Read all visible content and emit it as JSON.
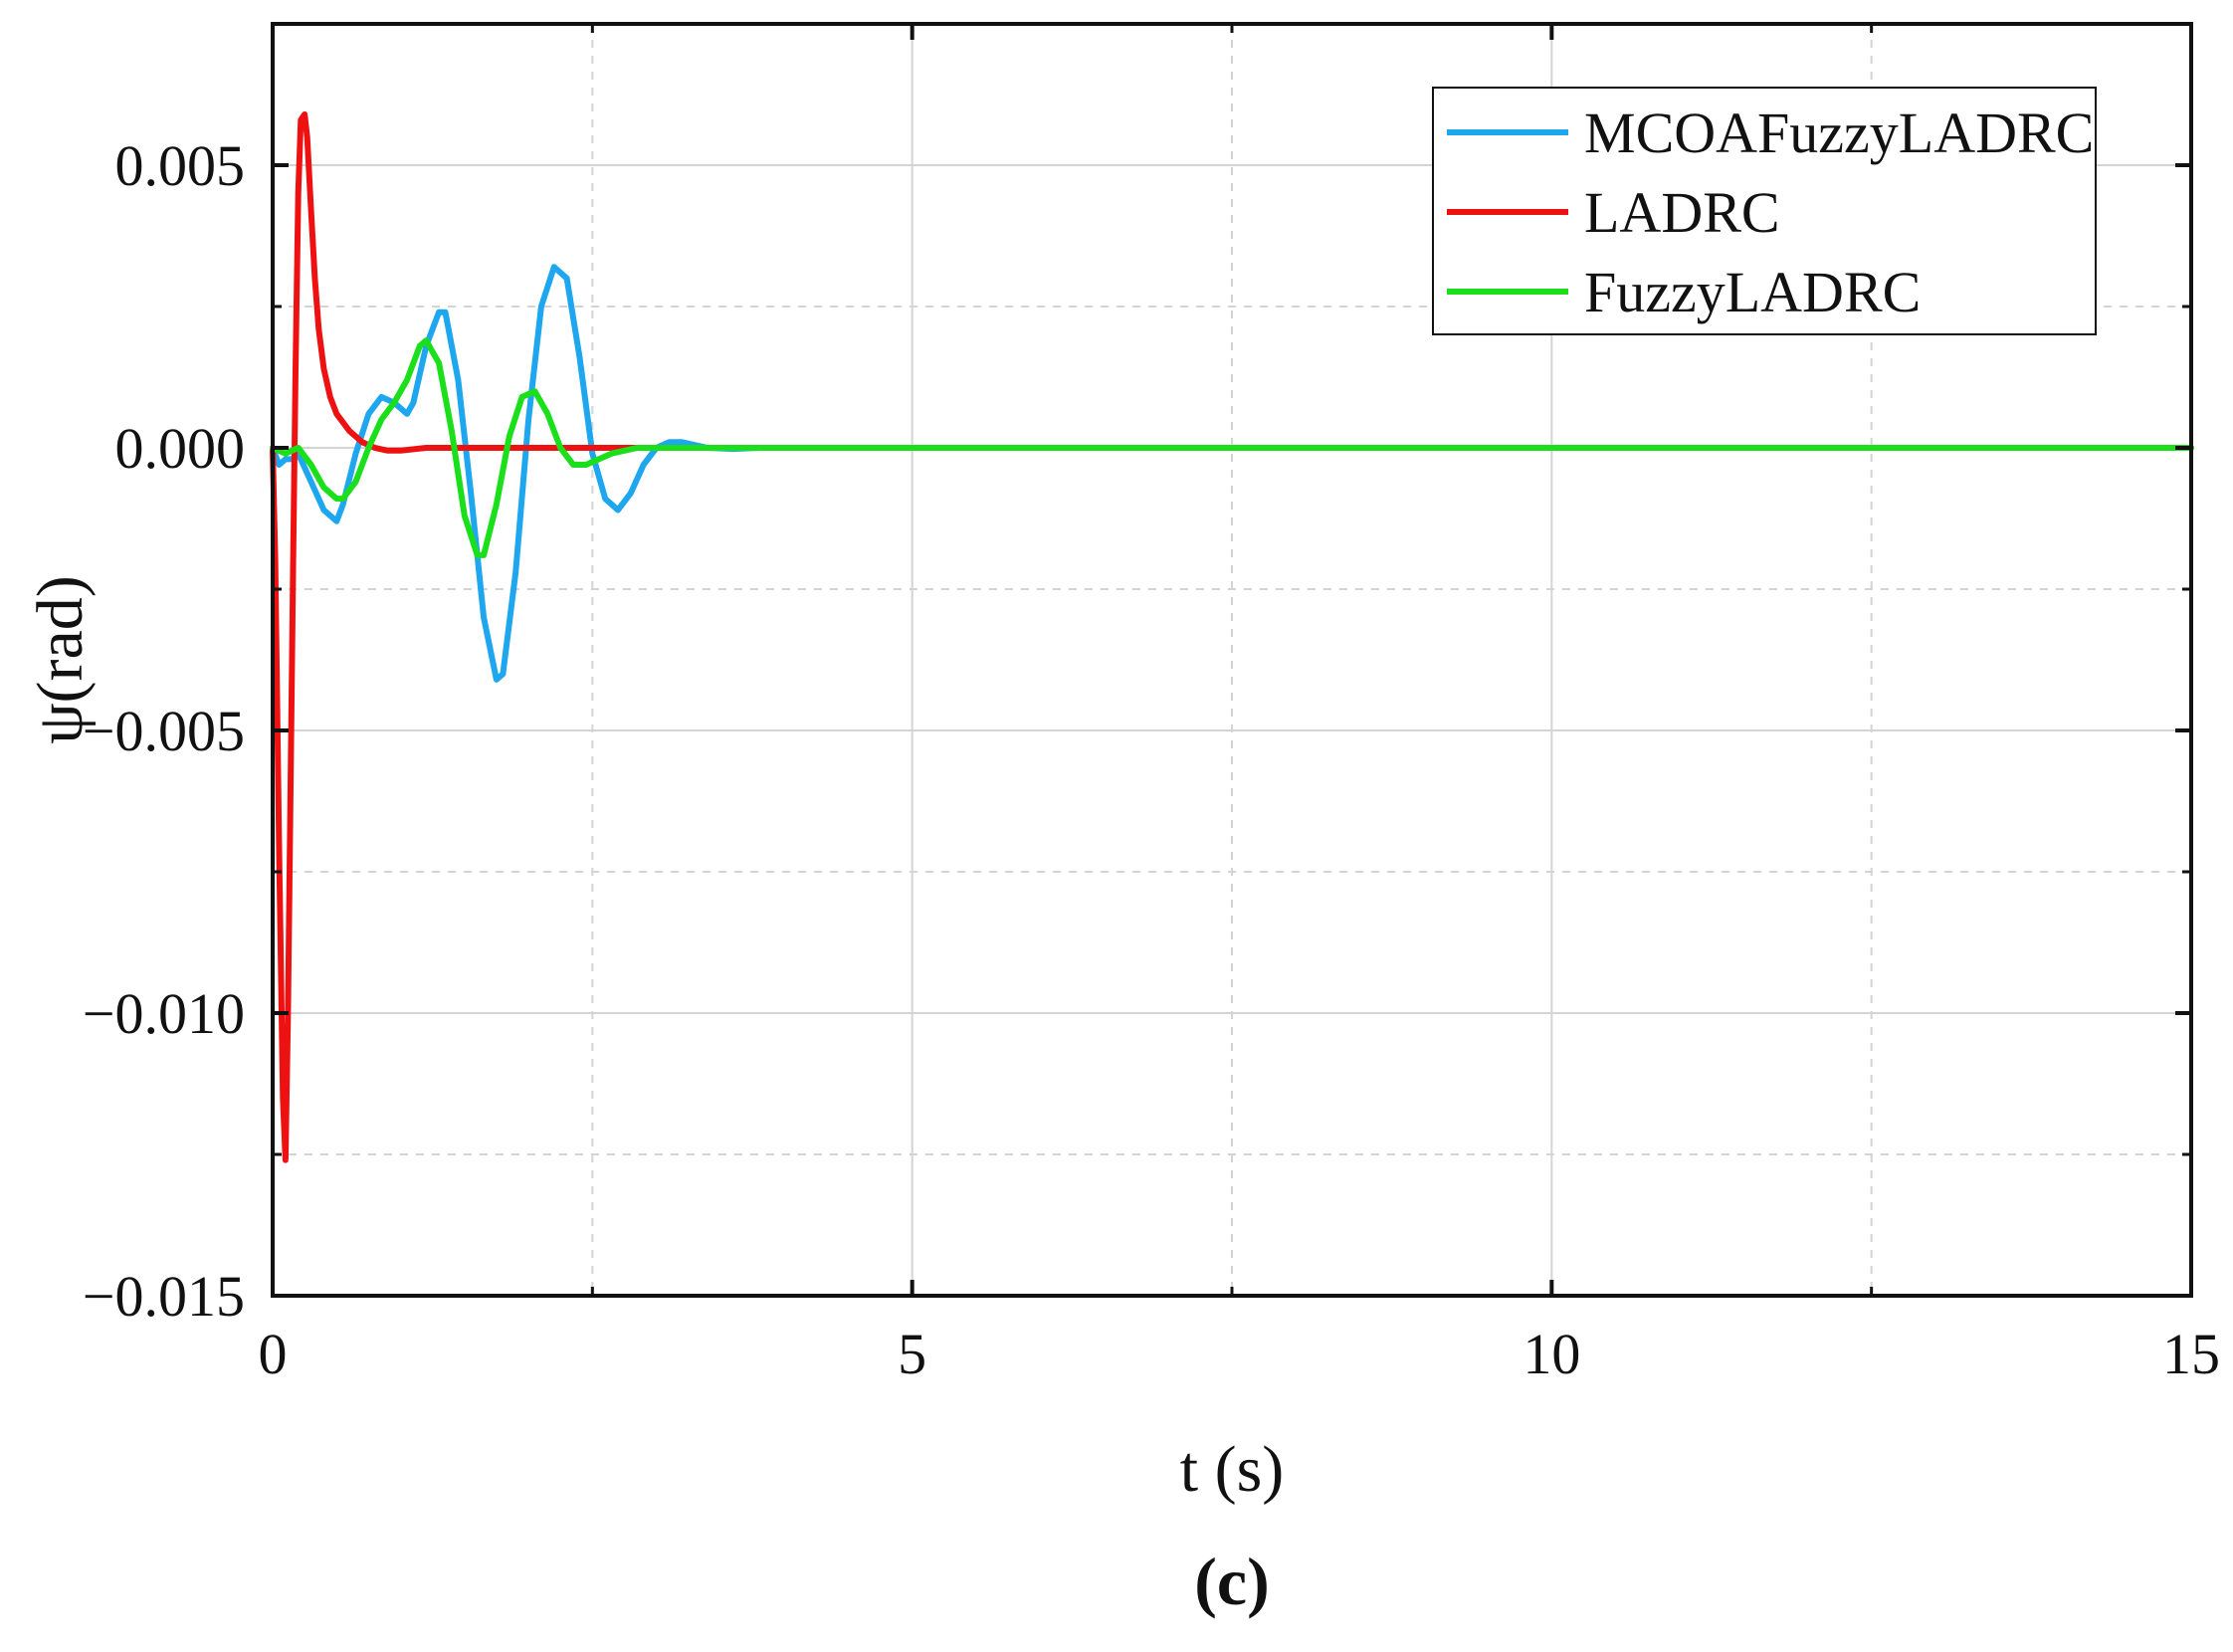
{
  "panel_label": "(c)",
  "chart_data": {
    "type": "line",
    "title": "",
    "xlabel": "t (s)",
    "ylabel": "ψ(rad)",
    "xlim": [
      0,
      15
    ],
    "ylim": [
      -0.015,
      0.0075
    ],
    "xticks": [
      0,
      5,
      10,
      15
    ],
    "xtick_labels": [
      "0",
      "5",
      "10",
      "15"
    ],
    "yticks": [
      0.005,
      0.0,
      -0.005,
      -0.01,
      -0.015
    ],
    "ytick_labels": [
      "0.005",
      "0.000",
      "−0.005",
      "−0.010",
      "−0.015"
    ],
    "grid": true,
    "legend_position": "top-right",
    "series": [
      {
        "name": "MCOAFuzzyLADRC",
        "color": "#1ea7ee",
        "x": [
          0,
          0.05,
          0.1,
          0.15,
          0.2,
          0.3,
          0.4,
          0.5,
          0.55,
          0.65,
          0.75,
          0.85,
          0.95,
          1.05,
          1.1,
          1.2,
          1.3,
          1.35,
          1.45,
          1.55,
          1.65,
          1.75,
          1.8,
          1.9,
          2.0,
          2.1,
          2.2,
          2.3,
          2.4,
          2.5,
          2.6,
          2.7,
          2.8,
          2.9,
          3.0,
          3.1,
          3.2,
          3.3,
          3.4,
          3.6,
          3.8,
          4.0,
          4.5,
          5,
          15
        ],
        "y": [
          0,
          -0.0003,
          -0.0002,
          -0.0002,
          -0.0001,
          -0.0006,
          -0.0011,
          -0.0013,
          -0.001,
          -0.0001,
          0.0006,
          0.0009,
          0.0008,
          0.0006,
          0.0008,
          0.0018,
          0.0024,
          0.0024,
          0.0012,
          -0.0008,
          -0.003,
          -0.0041,
          -0.004,
          -0.0022,
          0.0005,
          0.0025,
          0.0032,
          0.003,
          0.0016,
          -0.0001,
          -0.0009,
          -0.0011,
          -0.0008,
          -0.0003,
          0.0,
          0.0001,
          0.0001,
          5e-05,
          0.0,
          -2e-05,
          0.0,
          0.0,
          0.0,
          0.0,
          0.0
        ]
      },
      {
        "name": "LADRC",
        "color": "#ee1111",
        "x": [
          0,
          0.02,
          0.05,
          0.08,
          0.1,
          0.12,
          0.14,
          0.16,
          0.18,
          0.2,
          0.22,
          0.25,
          0.27,
          0.3,
          0.33,
          0.36,
          0.4,
          0.45,
          0.5,
          0.6,
          0.7,
          0.8,
          0.9,
          1.0,
          1.2,
          1.5,
          2.0,
          3.0,
          15
        ],
        "y": [
          0,
          -0.002,
          -0.007,
          -0.0115,
          -0.0126,
          -0.01,
          -0.006,
          -0.002,
          0.0015,
          0.0045,
          0.0058,
          0.0059,
          0.0055,
          0.0042,
          0.003,
          0.0021,
          0.0014,
          0.0009,
          0.0006,
          0.0003,
          0.0001,
          0.0,
          -5e-05,
          -5e-05,
          0.0,
          0.0,
          0.0,
          0.0,
          0.0
        ]
      },
      {
        "name": "FuzzyLADRC",
        "color": "#1adf1a",
        "x": [
          0,
          0.1,
          0.2,
          0.3,
          0.4,
          0.5,
          0.55,
          0.65,
          0.75,
          0.85,
          0.95,
          1.05,
          1.15,
          1.2,
          1.3,
          1.4,
          1.5,
          1.6,
          1.65,
          1.75,
          1.85,
          1.95,
          2.05,
          2.15,
          2.25,
          2.35,
          2.45,
          2.55,
          2.65,
          2.75,
          2.85,
          3.0,
          3.2,
          3.5,
          4.0,
          15
        ],
        "y": [
          0,
          -0.0001,
          0.0,
          -0.0003,
          -0.0007,
          -0.0009,
          -0.0009,
          -0.0006,
          0.0,
          0.0005,
          0.0008,
          0.0012,
          0.0018,
          0.0019,
          0.0015,
          0.0003,
          -0.0012,
          -0.0019,
          -0.0019,
          -0.001,
          0.0002,
          0.0009,
          0.001,
          0.0006,
          0.0,
          -0.0003,
          -0.0003,
          -0.0002,
          -0.0001,
          -5e-05,
          0.0,
          0.0,
          0.0,
          0.0,
          0.0,
          0.0
        ]
      }
    ]
  }
}
